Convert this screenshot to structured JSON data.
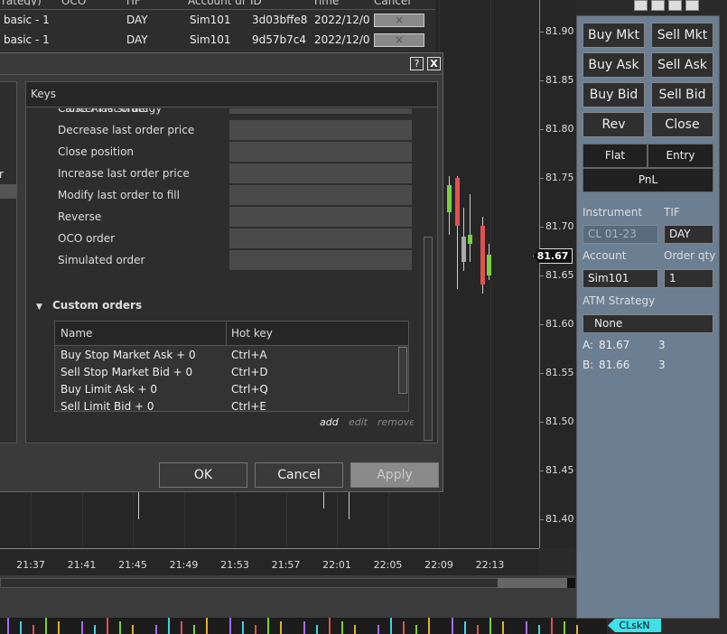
{
  "orders_table": {
    "headers": [
      "rategy)",
      "OCO",
      "TIF",
      "Account di",
      "ID",
      "Time",
      "Cancel"
    ],
    "rows": [
      [
        "basic - 1",
        "",
        "DAY",
        "Sim101",
        "3d03bffe8",
        "2022/12/0",
        "×"
      ],
      [
        "basic - 1",
        "",
        "DAY",
        "Sim101",
        "9d57b7c4",
        "2022/12/0",
        "×"
      ]
    ]
  },
  "chart": {
    "price_labels": [
      "81.90",
      "81.85",
      "81.80",
      "81.75",
      "81.70",
      "81.65",
      "81.60",
      "81.55",
      "81.50",
      "81.45",
      "81.40"
    ],
    "current_price": "81.67",
    "time_labels": [
      "21:37",
      "21:41",
      "21:45",
      "21:49",
      "21:53",
      "21:57",
      "22:01",
      "22:05",
      "22:09",
      "22:13"
    ],
    "instrument_tag": "CLskN"
  },
  "dialog": {
    "help": "?",
    "close": "X",
    "left_fragment": "r",
    "keys_header": "Keys",
    "actions": [
      "Cancel last order",
      "Close ATM strategy",
      "Decrease last order price",
      "Close position",
      "Increase last order price",
      "Modify last order to fill",
      "Reverse",
      "OCO order",
      "Simulated order"
    ],
    "custom_orders": {
      "title": "Custom orders",
      "columns": [
        "Name",
        "Hot key"
      ],
      "rows": [
        [
          "Buy Stop Market Ask + 0",
          "Ctrl+A"
        ],
        [
          "Sell Stop Market  Bid + 0",
          "Ctrl+D"
        ],
        [
          "Buy Limit  Ask + 0",
          "Ctrl+Q"
        ],
        [
          "Sell Limit  Bid + 0",
          "Ctrl+E"
        ]
      ]
    },
    "links": [
      "add",
      "edit",
      "remove"
    ],
    "buttons": [
      "OK",
      "Cancel",
      "Apply"
    ]
  },
  "order_entry": {
    "buttons": [
      [
        "Buy Mkt",
        "Sell Mkt"
      ],
      [
        "Buy Ask",
        "Sell Ask"
      ],
      [
        "Buy Bid",
        "Sell Bid"
      ],
      [
        "Rev",
        "Close"
      ]
    ],
    "flat": "Flat",
    "entry": "Entry",
    "pnl": "PnL",
    "labels": {
      "instrument": "Instrument",
      "tif": "TIF",
      "account": "Account",
      "order_qty": "Order qty",
      "atm": "ATM Strategy"
    },
    "instrument": "CL 01-23",
    "tif": "DAY",
    "account": "Sim101",
    "qty": "1",
    "atm_strategy": "None",
    "ask": {
      "label": "A:",
      "price": "81.67",
      "size": "3"
    },
    "bid": {
      "label": "B:",
      "price": "81.66",
      "size": "3"
    }
  }
}
